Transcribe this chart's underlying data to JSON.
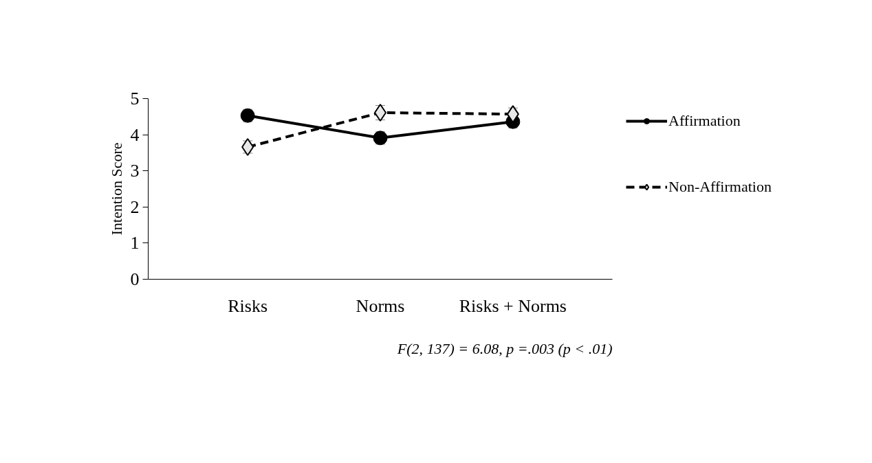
{
  "chart_data": {
    "type": "line",
    "ylabel": "Intention Score",
    "categories": [
      "Risks",
      "Norms",
      "Risks + Norms"
    ],
    "series": [
      {
        "name": "Affirmation",
        "color": "#000000",
        "marker": "circle",
        "line_style": "solid",
        "values": [
          4.53,
          3.91,
          4.36
        ],
        "errors": [
          0.17,
          0.17,
          0.17
        ]
      },
      {
        "name": "Non-Affirmation",
        "color": "#000000",
        "marker": "diamond",
        "line_style": "dashed",
        "values": [
          3.66,
          4.61,
          4.57
        ],
        "errors": [
          0.17,
          0.2,
          0.17
        ]
      }
    ],
    "ylim": [
      0,
      5
    ],
    "yticks": [
      0,
      1,
      2,
      3,
      4,
      5
    ],
    "grid": false,
    "legend": "right",
    "annotations": [
      "F(2, 137) = 6.08, p =.003 (p < .01)"
    ]
  }
}
